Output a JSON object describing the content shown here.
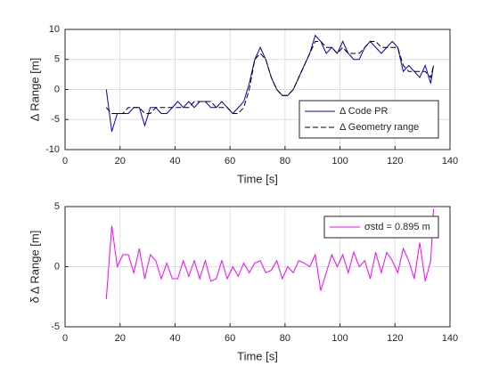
{
  "chart_data": [
    {
      "type": "line",
      "xlabel": "Time [s]",
      "ylabel": "Δ Range [m]",
      "x": [
        15,
        17,
        19,
        21,
        23,
        25,
        27,
        29,
        31,
        33,
        35,
        37,
        39,
        41,
        43,
        45,
        47,
        49,
        51,
        53,
        55,
        57,
        59,
        61,
        63,
        65,
        67,
        69,
        71,
        73,
        75,
        77,
        79,
        81,
        83,
        85,
        87,
        89,
        91,
        93,
        95,
        97,
        99,
        101,
        103,
        105,
        107,
        109,
        111,
        113,
        115,
        117,
        119,
        121,
        123,
        125,
        127,
        129,
        131,
        133,
        134
      ],
      "series": [
        {
          "name": "Δ Code PR",
          "color": "#0000cc",
          "linestyle": "-",
          "values": [
            0,
            -7,
            -4,
            -4,
            -4,
            -3,
            -3,
            -6,
            -3,
            -3,
            -4,
            -4,
            -3,
            -2,
            -3,
            -2,
            -3,
            -2,
            -2,
            -3,
            -3,
            -2,
            -3,
            -4,
            -3,
            -2,
            1,
            5,
            7,
            5,
            2,
            0,
            -1,
            -1,
            0,
            2,
            4,
            6,
            9,
            8,
            6,
            7,
            6,
            8,
            6,
            5,
            5,
            7,
            8,
            7,
            6,
            7,
            8,
            7,
            3,
            4,
            3,
            2,
            4,
            1,
            4
          ]
        },
        {
          "name": "Δ Geometry range",
          "color": "#000000",
          "linestyle": "--",
          "values": [
            -3,
            -4,
            -4,
            -4,
            -3,
            -3,
            -3,
            -4,
            -4,
            -3,
            -3,
            -3,
            -3,
            -3,
            -3,
            -3,
            -2,
            -2,
            -2,
            -2,
            -3,
            -3,
            -3,
            -4,
            -4,
            -3,
            0,
            5,
            6,
            5,
            2,
            0,
            -1,
            -1,
            0,
            2,
            4,
            6,
            8,
            8,
            7,
            7,
            6,
            7,
            6,
            6,
            6,
            7,
            8,
            8,
            7,
            7,
            7,
            7,
            4,
            3,
            3,
            3,
            3,
            2,
            4
          ]
        }
      ],
      "xlim": [
        0,
        140
      ],
      "xticks": [
        0,
        20,
        40,
        60,
        80,
        100,
        120,
        140
      ],
      "ylim": [
        -10,
        10
      ],
      "yticks": [
        -10,
        -5,
        0,
        5,
        10
      ],
      "grid": true,
      "legend": "lower right"
    },
    {
      "type": "line",
      "xlabel": "Time [s]",
      "ylabel": "δ Δ Range [m]",
      "x": [
        15,
        17,
        19,
        21,
        23,
        25,
        27,
        29,
        31,
        33,
        35,
        37,
        39,
        41,
        43,
        45,
        47,
        49,
        51,
        53,
        55,
        57,
        59,
        61,
        63,
        65,
        67,
        69,
        71,
        73,
        75,
        77,
        79,
        81,
        83,
        85,
        87,
        89,
        91,
        93,
        95,
        97,
        99,
        101,
        103,
        105,
        107,
        109,
        111,
        113,
        115,
        117,
        119,
        121,
        123,
        125,
        127,
        129,
        131,
        133,
        134
      ],
      "series": [
        {
          "name": "σstd = 0.895 m",
          "color": "#ff00ff",
          "linestyle": "-",
          "values": [
            -2.7,
            3.4,
            0,
            1,
            1,
            -0.5,
            1.5,
            -1,
            1,
            0.5,
            -1,
            0.3,
            -1,
            -1,
            0.5,
            -0.8,
            0.5,
            -1,
            0.5,
            -1.2,
            -1,
            0.5,
            -1,
            0,
            -0.8,
            0.3,
            -0.5,
            0.3,
            0.5,
            -0.5,
            -0.3,
            0.5,
            -1,
            0,
            -0.5,
            0.5,
            0.3,
            0,
            1,
            -2,
            -0.5,
            1,
            0,
            1,
            -0.5,
            1.2,
            0,
            0.5,
            -1,
            1.2,
            -0.5,
            1.2,
            0.5,
            -0.5,
            1.5,
            0.5,
            -1,
            2,
            -1.2,
            0.5,
            4.8
          ]
        }
      ],
      "xlim": [
        0,
        140
      ],
      "xticks": [
        0,
        20,
        40,
        60,
        80,
        100,
        120,
        140
      ],
      "ylim": [
        -5,
        5
      ],
      "yticks": [
        -5,
        0,
        5
      ],
      "grid": true,
      "legend": "upper right"
    }
  ]
}
